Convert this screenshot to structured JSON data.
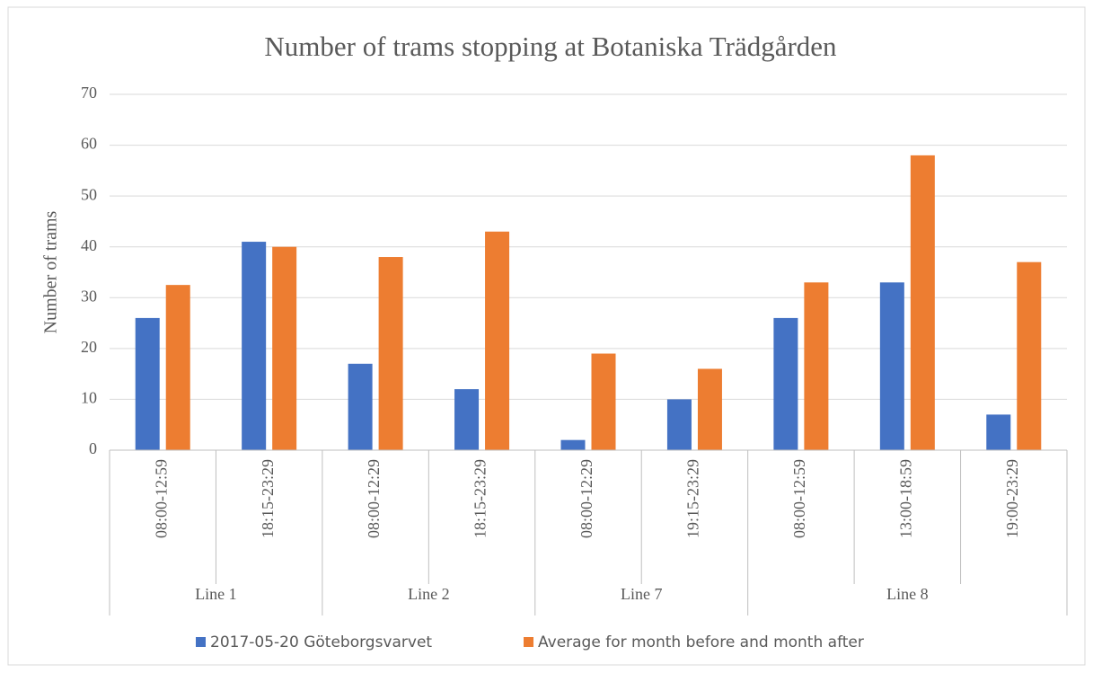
{
  "chart_data": {
    "type": "bar",
    "title": "Number of trams stopping at Botaniska Trädgården",
    "y_label": "Number of trams",
    "groups": [
      {
        "name": "Line 1",
        "categories": [
          "08:00-12:59",
          "18:15-23:29"
        ]
      },
      {
        "name": "Line 2",
        "categories": [
          "08:00-12:29",
          "18:15-23:29"
        ]
      },
      {
        "name": "Line 7",
        "categories": [
          "08:00-12:29",
          "19:15-23:29"
        ]
      },
      {
        "name": "Line 8",
        "categories": [
          "08:00-12:59",
          "13:00-18:59",
          "19:00-23:29"
        ]
      }
    ],
    "series": [
      {
        "name": "2017-05-20 Göteborgsvarvet",
        "color": "#4472c4",
        "values": [
          26,
          41,
          17,
          12,
          2,
          10,
          26,
          33,
          7
        ]
      },
      {
        "name": "Average for month before and month after",
        "color": "#ed7d31",
        "values": [
          32.5,
          40,
          38,
          43,
          19,
          16,
          33,
          58,
          37
        ]
      }
    ],
    "ylim": [
      0,
      70
    ],
    "yticks": [
      0,
      10,
      20,
      30,
      40,
      50,
      60,
      70
    ],
    "grid": true,
    "legend": "bottom"
  }
}
